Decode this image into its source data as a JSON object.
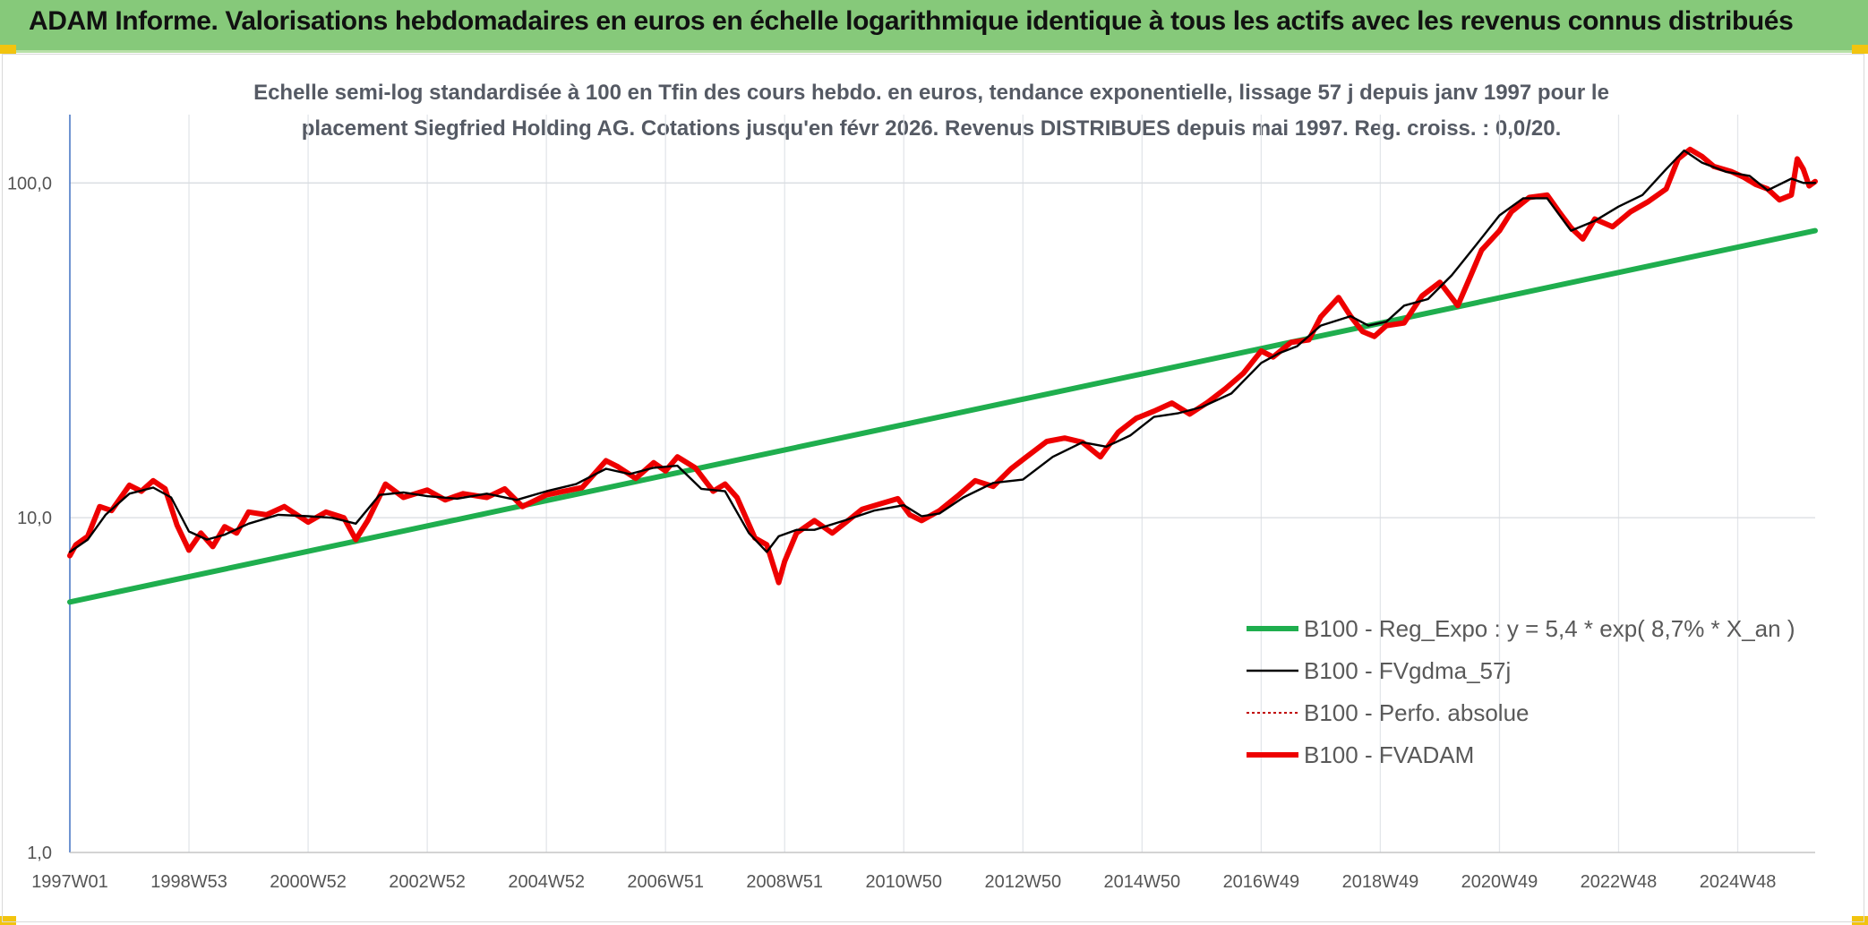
{
  "header": {
    "title": "ADAM Informe. Valorisations hebdomadaires en euros en échelle logarithmique identique à tous les actifs avec les revenus connus distribués"
  },
  "chart_data": {
    "type": "line",
    "title_lines": [
      "Echelle semi-log standardisée à 100 en Tfin des cours hebdo. en euros, tendance exponentielle, lissage 57 j depuis janv 1997 pour le",
      "placement Siegfried Holding AG. Cotations jusqu'en févr 2026. Revenus DISTRIBUES depuis mai 1997. Reg. croiss. : 0,0/20."
    ],
    "xlabel": "",
    "ylabel": "",
    "y_scale": "log",
    "ylim": [
      1,
      160
    ],
    "xlim": [
      1997.0,
      2026.3
    ],
    "y_ticks": [
      {
        "value": 1,
        "label": "1,0"
      },
      {
        "value": 10,
        "label": "10,0"
      },
      {
        "value": 100,
        "label": "100,0"
      }
    ],
    "x_ticks": [
      {
        "value": 1997.0,
        "label": "1997W01"
      },
      {
        "value": 1999.0,
        "label": "1998W53"
      },
      {
        "value": 2001.0,
        "label": "2000W52"
      },
      {
        "value": 2003.0,
        "label": "2002W52"
      },
      {
        "value": 2005.0,
        "label": "2004W52"
      },
      {
        "value": 2007.0,
        "label": "2006W51"
      },
      {
        "value": 2009.0,
        "label": "2008W51"
      },
      {
        "value": 2011.0,
        "label": "2010W50"
      },
      {
        "value": 2013.0,
        "label": "2012W50"
      },
      {
        "value": 2015.0,
        "label": "2014W50"
      },
      {
        "value": 2017.0,
        "label": "2016W49"
      },
      {
        "value": 2019.0,
        "label": "2018W49"
      },
      {
        "value": 2021.0,
        "label": "2020W49"
      },
      {
        "value": 2023.0,
        "label": "2022W48"
      },
      {
        "value": 2025.0,
        "label": "2024W48"
      }
    ],
    "grid": "vertical-and-horizontal",
    "legend_position": "right-bottom",
    "series": [
      {
        "name": "B100 - Reg_Expo : y = 5,4 * exp( 8,7% *  X_an )",
        "color": "#1fae4e",
        "style": "thick",
        "x": [
          1997.0,
          2026.3
        ],
        "y": [
          5.6,
          72
        ]
      },
      {
        "name": "B100 - FVgdma_57j",
        "color": "#000000",
        "style": "thin",
        "x": [
          1997.0,
          1997.3,
          1997.6,
          1998.0,
          1998.4,
          1998.7,
          1999.0,
          1999.3,
          1999.6,
          2000.0,
          2000.5,
          2001.0,
          2001.4,
          2001.8,
          2002.2,
          2002.6,
          2003.0,
          2003.5,
          2004.0,
          2004.5,
          2005.0,
          2005.5,
          2006.0,
          2006.4,
          2006.8,
          2007.2,
          2007.6,
          2008.0,
          2008.4,
          2008.7,
          2008.9,
          2009.2,
          2009.5,
          2010.0,
          2010.5,
          2011.0,
          2011.3,
          2011.6,
          2012.0,
          2012.5,
          2013.0,
          2013.5,
          2014.0,
          2014.4,
          2014.8,
          2015.2,
          2015.6,
          2016.0,
          2016.5,
          2017.0,
          2017.3,
          2017.6,
          2018.0,
          2018.5,
          2018.8,
          2019.1,
          2019.4,
          2019.8,
          2020.2,
          2020.6,
          2021.0,
          2021.4,
          2021.8,
          2022.2,
          2022.6,
          2023.0,
          2023.4,
          2023.8,
          2024.1,
          2024.4,
          2024.8,
          2025.2,
          2025.5,
          2025.9,
          2026.1,
          2026.3
        ],
        "y": [
          7.9,
          8.6,
          10.2,
          11.8,
          12.3,
          11.5,
          9.1,
          8.6,
          8.9,
          9.6,
          10.2,
          10.1,
          10.0,
          9.6,
          11.7,
          11.9,
          11.6,
          11.4,
          11.8,
          11.3,
          12.0,
          12.6,
          14.0,
          13.5,
          14.1,
          14.3,
          12.2,
          12.0,
          9.0,
          7.9,
          8.8,
          9.2,
          9.2,
          9.8,
          10.5,
          10.9,
          10.1,
          10.3,
          11.5,
          12.7,
          13.0,
          15.2,
          16.8,
          16.3,
          17.6,
          20.0,
          20.5,
          21.4,
          23.5,
          29.0,
          31.0,
          32.5,
          37.5,
          40.0,
          37.5,
          38.5,
          43.0,
          45.0,
          53.0,
          65.0,
          80.0,
          90.0,
          90.0,
          72.0,
          77.0,
          85.0,
          92.0,
          110.0,
          125.0,
          115.0,
          108.0,
          105.0,
          95.0,
          103.0,
          100.0,
          100.0
        ]
      },
      {
        "name": "B100 - Perfo. absolue",
        "color": "#c00000",
        "style": "dotted",
        "x": [],
        "y": []
      },
      {
        "name": "B100 - FVADAM",
        "color": "#ee0000",
        "style": "thick",
        "x": [
          1997.0,
          1997.1,
          1997.3,
          1997.5,
          1997.7,
          1998.0,
          1998.2,
          1998.4,
          1998.6,
          1998.8,
          1999.0,
          1999.2,
          1999.4,
          1999.6,
          1999.8,
          2000.0,
          2000.3,
          2000.6,
          2001.0,
          2001.3,
          2001.6,
          2001.8,
          2002.0,
          2002.3,
          2002.6,
          2003.0,
          2003.3,
          2003.6,
          2004.0,
          2004.3,
          2004.6,
          2005.0,
          2005.3,
          2005.6,
          2006.0,
          2006.2,
          2006.5,
          2006.8,
          2007.0,
          2007.2,
          2007.5,
          2007.8,
          2008.0,
          2008.2,
          2008.5,
          2008.7,
          2008.9,
          2009.0,
          2009.2,
          2009.5,
          2009.8,
          2010.0,
          2010.3,
          2010.6,
          2010.9,
          2011.1,
          2011.3,
          2011.6,
          2011.9,
          2012.2,
          2012.5,
          2012.8,
          2013.1,
          2013.4,
          2013.7,
          2014.0,
          2014.3,
          2014.6,
          2014.9,
          2015.2,
          2015.5,
          2015.8,
          2016.1,
          2016.4,
          2016.7,
          2017.0,
          2017.2,
          2017.5,
          2017.8,
          2018.0,
          2018.3,
          2018.5,
          2018.7,
          2018.9,
          2019.1,
          2019.4,
          2019.7,
          2020.0,
          2020.3,
          2020.5,
          2020.7,
          2021.0,
          2021.2,
          2021.5,
          2021.8,
          2022.0,
          2022.2,
          2022.4,
          2022.6,
          2022.9,
          2023.2,
          2023.5,
          2023.8,
          2024.0,
          2024.2,
          2024.4,
          2024.6,
          2024.9,
          2025.1,
          2025.3,
          2025.5,
          2025.7,
          2025.9,
          2026.0,
          2026.1,
          2026.2,
          2026.3
        ],
        "y": [
          7.7,
          8.3,
          8.8,
          10.8,
          10.5,
          12.5,
          12.0,
          12.9,
          12.2,
          9.5,
          8.0,
          9.0,
          8.2,
          9.4,
          9.0,
          10.4,
          10.2,
          10.8,
          9.7,
          10.4,
          10.0,
          8.6,
          9.8,
          12.6,
          11.5,
          12.1,
          11.3,
          11.8,
          11.5,
          12.2,
          10.8,
          11.7,
          12.0,
          12.3,
          14.8,
          14.2,
          13.1,
          14.6,
          13.8,
          15.2,
          14.1,
          12.0,
          12.6,
          11.5,
          8.7,
          8.3,
          6.4,
          7.4,
          9.0,
          9.8,
          9.0,
          9.6,
          10.6,
          11.0,
          11.4,
          10.2,
          9.8,
          10.5,
          11.6,
          12.9,
          12.4,
          14.0,
          15.4,
          16.9,
          17.3,
          16.8,
          15.2,
          18.0,
          19.8,
          20.8,
          22.0,
          20.4,
          22.1,
          24.3,
          27.0,
          31.5,
          30.2,
          33.4,
          34.0,
          39.8,
          45.5,
          40.0,
          36.0,
          34.8,
          37.5,
          38.2,
          46.0,
          50.5,
          43.0,
          52.0,
          63.0,
          72.0,
          82.0,
          90.5,
          92.0,
          82.0,
          73.5,
          68.0,
          78.0,
          74.0,
          82.0,
          88.0,
          96.0,
          118.0,
          126.0,
          120.0,
          112.0,
          108.0,
          104.0,
          99.0,
          96.0,
          89.0,
          92.0,
          118.0,
          110.0,
          98.0,
          101.0
        ]
      }
    ]
  }
}
